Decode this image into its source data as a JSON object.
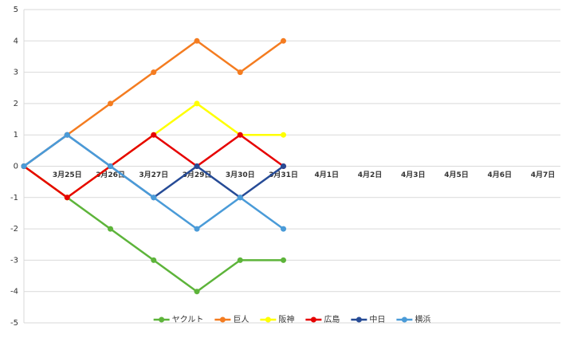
{
  "chart_data": {
    "type": "line",
    "categories": [
      null,
      "3月25日",
      "3月26日",
      "3月27日",
      "3月29日",
      "3月30日",
      "3月31日",
      "4月1日",
      "4月2日",
      "4月3日",
      "4月5日",
      "4月6日",
      "4月7日"
    ],
    "series": [
      {
        "name": "ヤクルト",
        "color": "#5db43a",
        "values": [
          0,
          -1,
          -2,
          -3,
          -4,
          -3,
          -3,
          null,
          null,
          null,
          null,
          null,
          null
        ]
      },
      {
        "name": "巨人",
        "color": "#f47c20",
        "values": [
          0,
          1,
          2,
          3,
          4,
          3,
          4,
          null,
          null,
          null,
          null,
          null,
          null
        ]
      },
      {
        "name": "阪神",
        "color": "#ffff00",
        "values": [
          0,
          -1,
          0,
          1,
          2,
          1,
          1,
          null,
          null,
          null,
          null,
          null,
          null
        ]
      },
      {
        "name": "広島",
        "color": "#e60000",
        "values": [
          0,
          -1,
          0,
          1,
          0,
          1,
          0,
          null,
          null,
          null,
          null,
          null,
          null
        ]
      },
      {
        "name": "中日",
        "color": "#264b96",
        "values": [
          0,
          1,
          0,
          -1,
          0,
          -1,
          0,
          null,
          null,
          null,
          null,
          null,
          null
        ]
      },
      {
        "name": "横浜",
        "color": "#4a9bd8",
        "values": [
          0,
          1,
          0,
          -1,
          -2,
          -1,
          -2,
          null,
          null,
          null,
          null,
          null,
          null
        ]
      }
    ],
    "ylim": [
      -5,
      5
    ],
    "yticks": [
      -5,
      -4,
      -3,
      -2,
      -1,
      0,
      1,
      2,
      3,
      4,
      5
    ],
    "grid": true,
    "legend": "bottom"
  }
}
